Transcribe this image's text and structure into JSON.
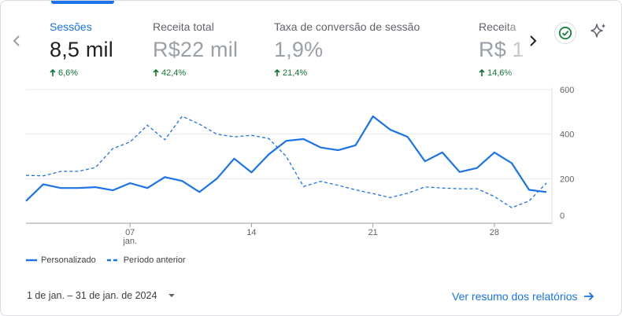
{
  "metrics": [
    {
      "label": "Sessões",
      "value": "8,5 mil",
      "change": "6,6%",
      "active": true
    },
    {
      "label": "Receita total",
      "value": "R$22 mil",
      "change": "42,4%"
    },
    {
      "label": "Taxa de conversão de sessão",
      "value": "1,9%",
      "change": "21,4%"
    },
    {
      "label": "Receita",
      "value": "R$ 1",
      "change": "14,6%"
    }
  ],
  "icons": {
    "prev": "chevron-left-icon",
    "next": "chevron-right-icon",
    "status": "check-circle-icon",
    "insights": "sparkle-icon",
    "dropdown": "caret-down-icon",
    "link": "arrow-right-icon",
    "increase": "arrow-up-icon"
  },
  "colors": {
    "accent": "#1a73e8",
    "positive": "#137333",
    "status": "#188038"
  },
  "chart_data": {
    "type": "line",
    "x": [
      1,
      2,
      3,
      4,
      5,
      6,
      7,
      8,
      9,
      10,
      11,
      12,
      13,
      14,
      15,
      16,
      17,
      18,
      19,
      20,
      21,
      22,
      23,
      24,
      25,
      26,
      27,
      28,
      29,
      30,
      31
    ],
    "x_ticks": [
      {
        "value": 7,
        "label": "07",
        "sub": "jan."
      },
      {
        "value": 14,
        "label": "14"
      },
      {
        "value": 21,
        "label": "21"
      },
      {
        "value": 28,
        "label": "28"
      }
    ],
    "y_ticks": [
      0,
      200,
      400,
      600
    ],
    "ylim": [
      0,
      600
    ],
    "grid": true,
    "legend_position": "bottom-left",
    "series": [
      {
        "name": "Personalizado",
        "style": "solid",
        "color": "#1a73e8",
        "values": [
          100,
          175,
          158,
          158,
          162,
          148,
          180,
          158,
          207,
          190,
          140,
          200,
          290,
          228,
          310,
          370,
          378,
          340,
          328,
          350,
          480,
          420,
          388,
          278,
          318,
          230,
          248,
          318,
          270,
          150,
          140
        ]
      },
      {
        "name": "Período anterior",
        "style": "dashed",
        "color": "#1a73e8",
        "values": [
          215,
          213,
          233,
          233,
          250,
          335,
          365,
          440,
          375,
          480,
          445,
          400,
          388,
          395,
          380,
          300,
          165,
          188,
          170,
          150,
          133,
          115,
          135,
          163,
          158,
          155,
          155,
          120,
          70,
          100,
          180
        ]
      }
    ]
  },
  "footer": {
    "date_range": "1 de jan. – 31 de jan. de 2024",
    "view_link": "Ver resumo dos relatórios"
  }
}
